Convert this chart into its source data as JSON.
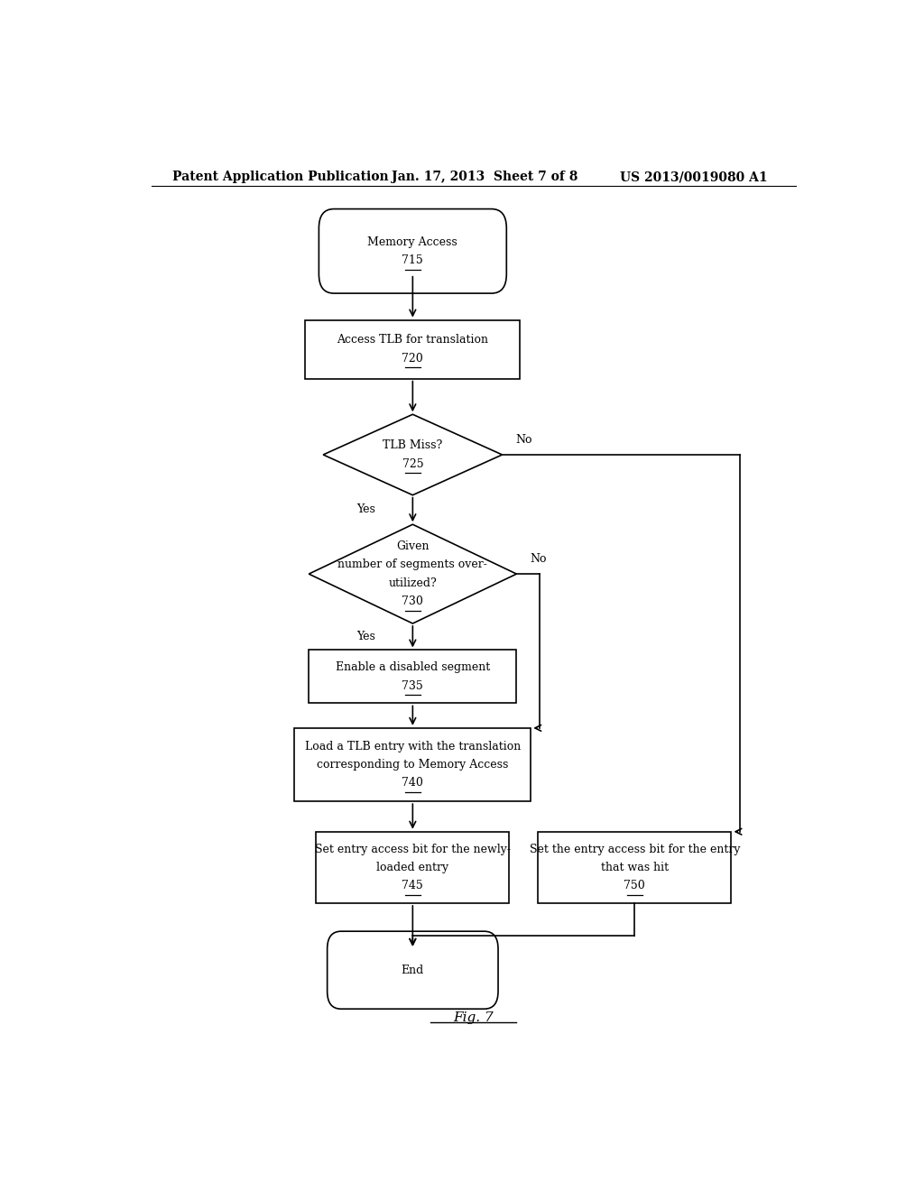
{
  "bg_color": "#ffffff",
  "header_left": "Patent Application Publication",
  "header_mid": "Jan. 17, 2013  Sheet 7 of 8",
  "header_right": "US 2013/0019080 A1",
  "fig_label": "Fig. 7"
}
